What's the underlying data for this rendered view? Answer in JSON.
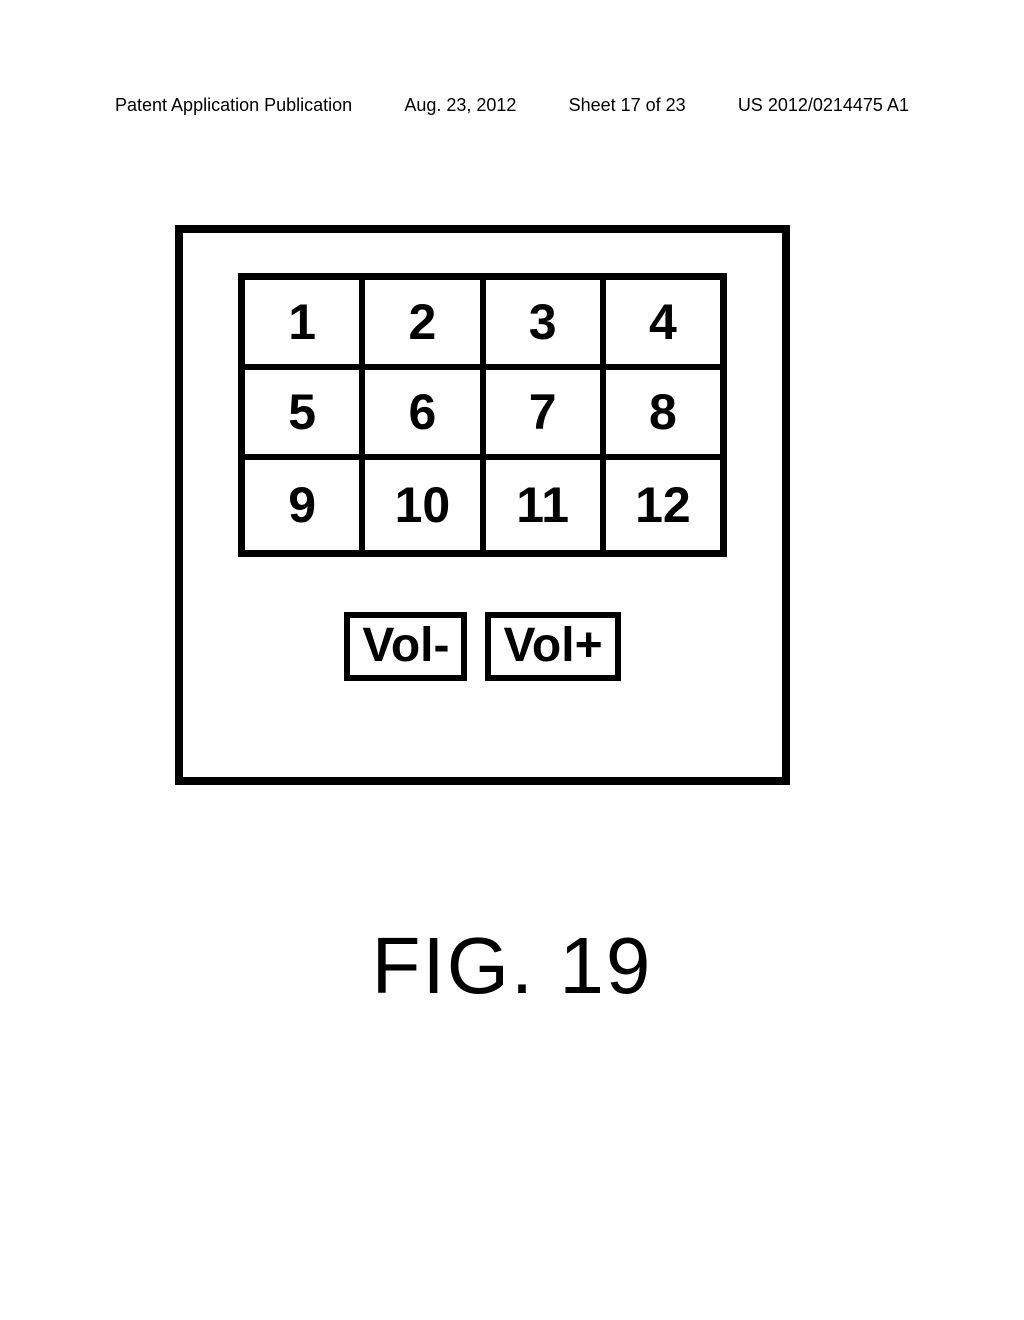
{
  "header": {
    "publication_type": "Patent Application Publication",
    "date": "Aug. 23, 2012",
    "sheet": "Sheet 17 of 23",
    "pub_number": "US 2012/0214475 A1"
  },
  "figure": {
    "type": "infographic",
    "keypad": {
      "rows": [
        [
          "1",
          "2",
          "3",
          "4"
        ],
        [
          "5",
          "6",
          "7",
          "8"
        ],
        [
          "9",
          "10",
          "11",
          "12"
        ]
      ],
      "cell_border_color": "#000000",
      "cell_border_width": 6,
      "outer_border_width": 7,
      "cell_font_size": 50,
      "cell_font_weight": 900,
      "text_color": "#000000",
      "background_color": "#ffffff"
    },
    "volume_buttons": {
      "down_label": "Vol-",
      "up_label": "Vol+",
      "border_color": "#000000",
      "border_width": 6,
      "font_size": 48,
      "font_weight": 900
    },
    "outer_border_color": "#000000",
    "outer_border_width": 8,
    "label": "FIG. 19",
    "label_font_size": 80
  }
}
